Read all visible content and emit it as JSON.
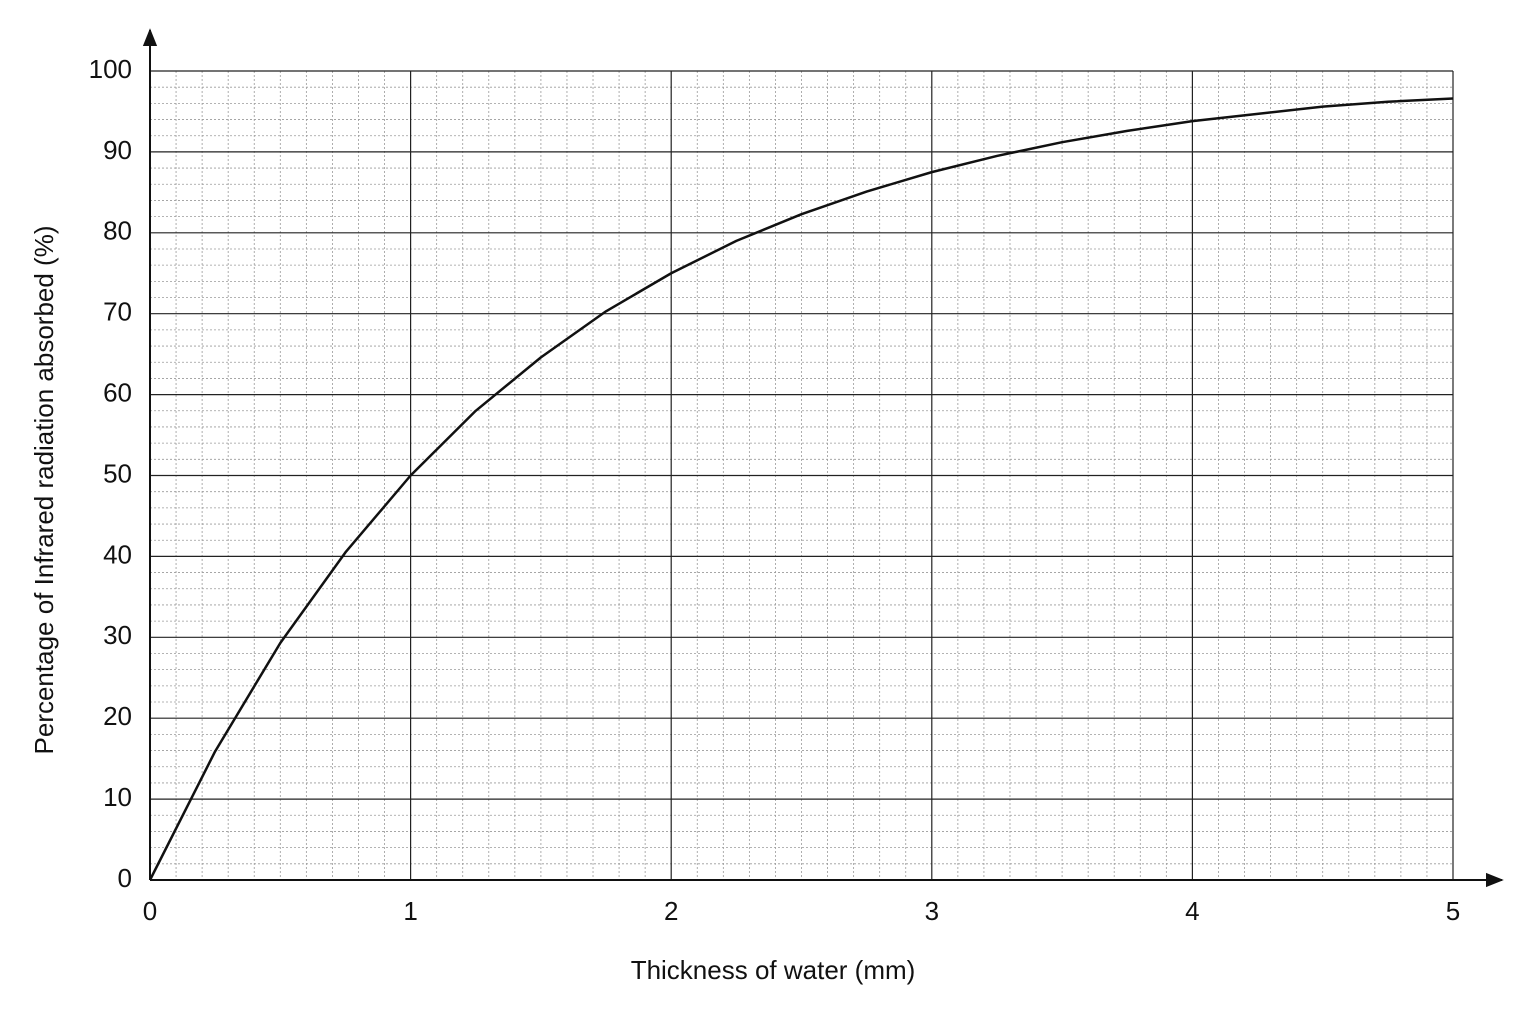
{
  "chart_data": {
    "type": "line",
    "x_label": "Thickness of water (mm)",
    "y_label": "Percentage of Infrared radiation absorbed (%)",
    "x": [
      0,
      0.25,
      0.5,
      0.75,
      1,
      1.25,
      1.5,
      1.75,
      2,
      2.25,
      2.5,
      2.75,
      3,
      3.25,
      3.5,
      3.75,
      4,
      4.25,
      4.5,
      4.75,
      5
    ],
    "values": [
      0,
      15.9,
      29.3,
      40.5,
      50,
      58,
      64.6,
      70.3,
      75,
      79,
      82.3,
      85.1,
      87.5,
      89.5,
      91.2,
      92.6,
      93.8,
      94.7,
      95.6,
      96.2,
      96.6
    ],
    "color": "#111111",
    "xlim": [
      0,
      5
    ],
    "xticks": [
      0,
      1,
      2,
      3,
      4,
      5
    ],
    "ylim": [
      0,
      100
    ],
    "yticks": [
      0,
      10,
      20,
      30,
      40,
      50,
      60,
      70,
      80,
      90,
      100
    ],
    "grid": true,
    "minor_grid": true
  }
}
